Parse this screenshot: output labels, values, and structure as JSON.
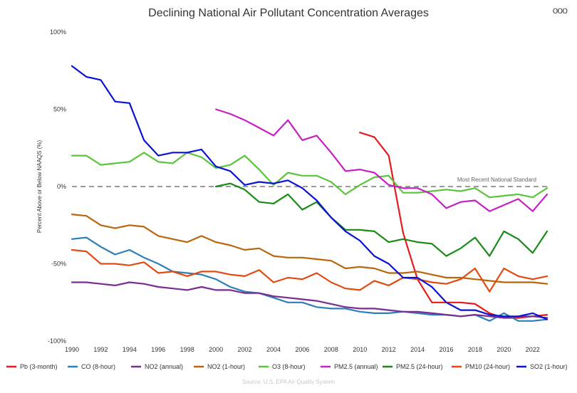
{
  "menu_icon": "more-horizontal-icon",
  "menu_label": "ooo",
  "chart_data": {
    "type": "line",
    "title": "Declining National Air Pollutant Concentration Averages",
    "xlabel": "",
    "ylabel": "Percent Above or Below NAAQS (%)",
    "xlim": [
      1990,
      2023
    ],
    "ylim": [
      -100,
      100
    ],
    "x_ticks": [
      1990,
      1992,
      1994,
      1996,
      1998,
      2000,
      2002,
      2004,
      2006,
      2008,
      2010,
      2012,
      2014,
      2016,
      2018,
      2020,
      2022
    ],
    "y_ticks": [
      {
        "value": 100,
        "label": "100%"
      },
      {
        "value": 50,
        "label": "50%"
      },
      {
        "value": 0,
        "label": "0%"
      },
      {
        "value": -50,
        "label": "-50%"
      },
      {
        "value": -100,
        "label": "-100%"
      }
    ],
    "reference_line": {
      "value": 0,
      "label": "Most Recent National Standard"
    },
    "legend_position": "bottom",
    "source": "Source: U.S. EPA Air Quality System",
    "series": [
      {
        "name": "Pb (3-month)",
        "color": "#e41a1c",
        "x_start": 2010,
        "values": [
          35,
          32,
          20,
          -30,
          -60,
          -75,
          -75,
          -75,
          -76,
          -82,
          -85,
          -85,
          -84,
          -83
        ]
      },
      {
        "name": "CO (8-hour)",
        "color": "#2c7fb8",
        "x_start": 1990,
        "values": [
          -34,
          -33,
          -39,
          -44,
          -41,
          -46,
          -50,
          -55,
          -56,
          -57,
          -60,
          -65,
          -68,
          -69,
          -72,
          -75,
          -75,
          -78,
          -79,
          -79,
          -81,
          -82,
          -82,
          -81,
          -82,
          -83,
          -83,
          -84,
          -83,
          -87,
          -82,
          -87,
          -87,
          -86
        ]
      },
      {
        "name": "NO2 (annual)",
        "color": "#7b2c8f",
        "x_start": 1990,
        "values": [
          -62,
          -62,
          -63,
          -64,
          -62,
          -63,
          -65,
          -66,
          -67,
          -65,
          -67,
          -67,
          -69,
          -69,
          -71,
          -72,
          -73,
          -74,
          -76,
          -78,
          -79,
          -79,
          -80,
          -81,
          -81,
          -82,
          -83,
          -84,
          -83,
          -84,
          -85,
          -84,
          -84,
          -85
        ]
      },
      {
        "name": "NO2 (1-hour)",
        "color": "#b8650c",
        "x_start": 1990,
        "values": [
          -18,
          -19,
          -25,
          -27,
          -25,
          -26,
          -32,
          -34,
          -36,
          -32,
          -36,
          -38,
          -41,
          -40,
          -45,
          -46,
          -46,
          -47,
          -48,
          -53,
          -52,
          -53,
          -56,
          -56,
          -55,
          -57,
          -59,
          -59,
          -60,
          -61,
          -62,
          -62,
          -62,
          -63
        ]
      },
      {
        "name": "O3 (8-hour)",
        "color": "#5ac43c",
        "x_start": 1990,
        "values": [
          20,
          20,
          14,
          15,
          16,
          22,
          16,
          15,
          22,
          19,
          12,
          14,
          20,
          11,
          1,
          9,
          7,
          7,
          3,
          -5,
          1,
          6,
          7,
          -4,
          -4,
          -3,
          -2,
          -3,
          -1,
          -7,
          -6,
          -5,
          -7,
          -1
        ]
      },
      {
        "name": "PM2.5 (annual)",
        "color": "#c71fc4",
        "x_start": 2000,
        "values": [
          50,
          47,
          43,
          38,
          33,
          43,
          30,
          33,
          22,
          10,
          11,
          9,
          1,
          -1,
          -1,
          -5,
          -14,
          -10,
          -9,
          -16,
          -12,
          -8,
          -16,
          -5
        ]
      },
      {
        "name": "PM2.5 (24-hour)",
        "color": "#1a8a16",
        "x_start": 2000,
        "values": [
          0,
          2,
          -2,
          -10,
          -11,
          -5,
          -15,
          -10,
          -20,
          -28,
          -28,
          -29,
          -36,
          -34,
          -36,
          -37,
          -45,
          -40,
          -33,
          -45,
          -29,
          -34,
          -43,
          -29
        ]
      },
      {
        "name": "PM10 (24-hour)",
        "color": "#e14a10",
        "x_start": 1990,
        "values": [
          -41,
          -42,
          -50,
          -50,
          -51,
          -49,
          -56,
          -55,
          -58,
          -55,
          -55,
          -57,
          -58,
          -54,
          -62,
          -59,
          -60,
          -56,
          -62,
          -66,
          -67,
          -61,
          -64,
          -59,
          -60,
          -62,
          -63,
          -60,
          -53,
          -68,
          -53,
          -58,
          -60,
          -58
        ]
      },
      {
        "name": "SO2 (1-hour)",
        "color": "#0a12d4",
        "x_start": 1990,
        "values": [
          78,
          71,
          69,
          55,
          54,
          30,
          20,
          22,
          22,
          24,
          13,
          10,
          1,
          3,
          2,
          4,
          -1,
          -9,
          -20,
          -29,
          -35,
          -45,
          -50,
          -59,
          -59,
          -65,
          -75,
          -80,
          -80,
          -83,
          -84,
          -84,
          -82,
          -86
        ]
      }
    ]
  }
}
